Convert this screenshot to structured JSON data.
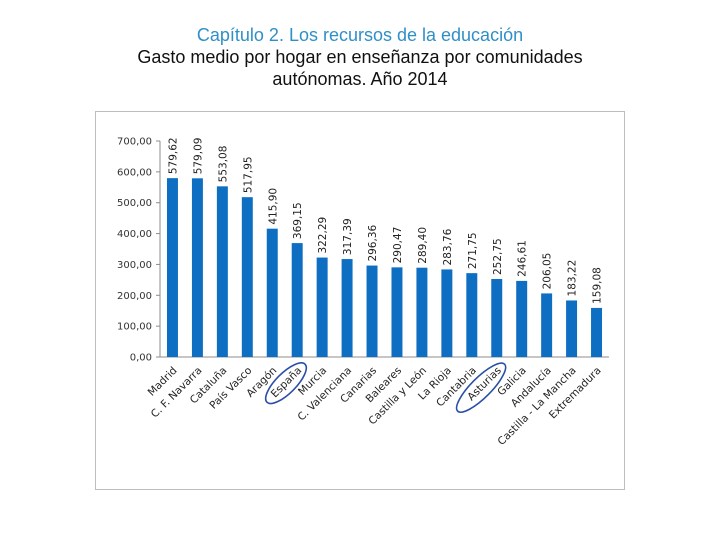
{
  "header": {
    "chapter": "Capítulo 2. Los recursos de la educación",
    "title_line1": "Gasto medio por hogar en enseñanza por comunidades",
    "title_line2": "autónomas. Año 2014"
  },
  "colors": {
    "bar": "#0e6fc2",
    "highlight": "#2a4fa6",
    "chapter": "#2f8fc7"
  },
  "chart_data": {
    "type": "bar",
    "title": "Gasto medio por hogar en enseñanza por comunidades autónomas. Año 2014",
    "xlabel": "",
    "ylabel": "",
    "ylim": [
      0,
      700
    ],
    "yticks": [
      0,
      100,
      200,
      300,
      400,
      500,
      600,
      700
    ],
    "ytick_labels": [
      "0,00",
      "100,00",
      "200,00",
      "300,00",
      "400,00",
      "500,00",
      "600,00",
      "700,00"
    ],
    "categories": [
      "Madrid",
      "C. F. Navarra",
      "Cataluña",
      "País Vasco",
      "Aragón",
      "España",
      "Murcia",
      "C. Valenciana",
      "Canarias",
      "Baleares",
      "Castilla y León",
      "La Rioja",
      "Cantabria",
      "Asturias",
      "Galicia",
      "Andalucía",
      "Castilla - La Mancha",
      "Extremadura"
    ],
    "values": [
      579.62,
      579.09,
      553.08,
      517.95,
      415.9,
      369.15,
      322.29,
      317.39,
      296.36,
      290.47,
      289.4,
      283.76,
      271.75,
      252.75,
      246.61,
      206.05,
      183.22,
      159.08
    ],
    "value_labels": [
      "579,62",
      "579,09",
      "553,08",
      "517,95",
      "415,90",
      "369,15",
      "322,29",
      "317,39",
      "296,36",
      "290,47",
      "289,40",
      "283,76",
      "271,75",
      "252,75",
      "246,61",
      "206,05",
      "183,22",
      "159,08"
    ],
    "highlighted": [
      "España",
      "Asturias"
    ],
    "grid": false,
    "legend": "none"
  }
}
